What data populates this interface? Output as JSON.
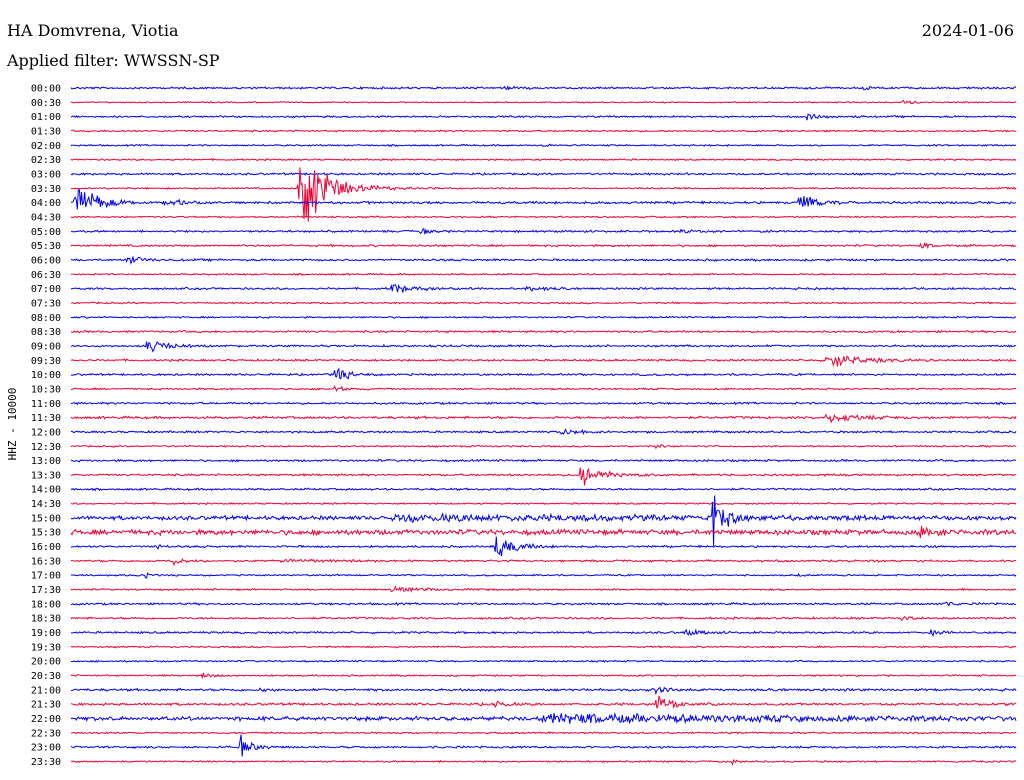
{
  "header": {
    "station": "HA Domvrena, Viotia",
    "filter": "Applied filter: WWSSN-SP",
    "date": "2024-01-06"
  },
  "colors": {
    "even_hour_trace": "#0000ee",
    "half_hour_trace": "#ee0033",
    "background": "#ffffff",
    "text": "#000000"
  },
  "chart_data": {
    "type": "line",
    "subtype": "helicorder",
    "ylabel": "HHZ - 10000",
    "row_labels": [
      "00:00",
      "00:30",
      "01:00",
      "01:30",
      "02:00",
      "02:30",
      "03:00",
      "03:30",
      "04:00",
      "04:30",
      "05:00",
      "05:30",
      "06:00",
      "06:30",
      "07:00",
      "07:30",
      "08:00",
      "08:30",
      "09:00",
      "09:30",
      "10:00",
      "10:30",
      "11:00",
      "11:30",
      "12:00",
      "12:30",
      "13:00",
      "13:30",
      "14:00",
      "14:30",
      "15:00",
      "15:30",
      "16:00",
      "16:30",
      "17:00",
      "17:30",
      "18:00",
      "18:30",
      "19:00",
      "19:30",
      "20:00",
      "20:30",
      "21:00",
      "21:30",
      "22:00",
      "22:30",
      "23:00",
      "23:30"
    ],
    "rows": [
      {
        "time": "00:00",
        "noise": 1.0,
        "events": [
          {
            "t": 0.46,
            "a": 2,
            "d": 0.01
          },
          {
            "t": 0.84,
            "a": 2,
            "d": 0.01
          }
        ]
      },
      {
        "time": "00:30",
        "noise": 0.6,
        "events": [
          {
            "t": 0.88,
            "a": 3,
            "d": 0.01
          }
        ]
      },
      {
        "time": "01:00",
        "noise": 0.9,
        "events": [
          {
            "t": 0.78,
            "a": 5,
            "d": 0.01
          }
        ]
      },
      {
        "time": "01:30",
        "noise": 0.8,
        "events": []
      },
      {
        "time": "02:00",
        "noise": 0.8,
        "events": [
          {
            "t": 0.5,
            "a": 2,
            "d": 0.005
          }
        ]
      },
      {
        "time": "02:30",
        "noise": 0.8,
        "events": []
      },
      {
        "time": "03:00",
        "noise": 1.0,
        "events": []
      },
      {
        "time": "03:30",
        "noise": 0.8,
        "events": [
          {
            "t": 0.24,
            "a": 65,
            "d": 0.025
          }
        ]
      },
      {
        "time": "04:00",
        "noise": 1.2,
        "events": [
          {
            "t": 0.005,
            "a": 22,
            "d": 0.02
          },
          {
            "t": 0.1,
            "a": 3,
            "d": 0.03
          },
          {
            "t": 0.77,
            "a": 10,
            "d": 0.015
          }
        ]
      },
      {
        "time": "04:30",
        "noise": 0.8,
        "events": []
      },
      {
        "time": "05:00",
        "noise": 1.0,
        "events": [
          {
            "t": 0.37,
            "a": 3,
            "d": 0.01
          },
          {
            "t": 0.64,
            "a": 2,
            "d": 0.01
          }
        ]
      },
      {
        "time": "05:30",
        "noise": 1.0,
        "events": [
          {
            "t": 0.9,
            "a": 3,
            "d": 0.01
          }
        ]
      },
      {
        "time": "06:00",
        "noise": 1.0,
        "events": [
          {
            "t": 0.06,
            "a": 5,
            "d": 0.015
          }
        ]
      },
      {
        "time": "06:30",
        "noise": 0.8,
        "events": []
      },
      {
        "time": "07:00",
        "noise": 1.0,
        "events": [
          {
            "t": 0.34,
            "a": 5,
            "d": 0.02
          },
          {
            "t": 0.48,
            "a": 3,
            "d": 0.02
          }
        ]
      },
      {
        "time": "07:30",
        "noise": 0.8,
        "events": []
      },
      {
        "time": "08:00",
        "noise": 0.8,
        "events": []
      },
      {
        "time": "08:30",
        "noise": 1.0,
        "events": []
      },
      {
        "time": "09:00",
        "noise": 1.0,
        "events": [
          {
            "t": 0.08,
            "a": 8,
            "d": 0.02
          }
        ]
      },
      {
        "time": "09:30",
        "noise": 1.0,
        "events": [
          {
            "t": 0.8,
            "a": 9,
            "d": 0.03
          }
        ]
      },
      {
        "time": "10:00",
        "noise": 1.0,
        "events": [
          {
            "t": 0.28,
            "a": 10,
            "d": 0.012
          }
        ]
      },
      {
        "time": "10:30",
        "noise": 0.8,
        "events": [
          {
            "t": 0.28,
            "a": 4,
            "d": 0.01
          }
        ]
      },
      {
        "time": "11:00",
        "noise": 1.0,
        "events": []
      },
      {
        "time": "11:30",
        "noise": 1.2,
        "events": [
          {
            "t": 0.8,
            "a": 5,
            "d": 0.03
          }
        ]
      },
      {
        "time": "12:00",
        "noise": 1.0,
        "events": [
          {
            "t": 0.52,
            "a": 4,
            "d": 0.015
          }
        ]
      },
      {
        "time": "12:30",
        "noise": 0.8,
        "events": [
          {
            "t": 0.62,
            "a": 3,
            "d": 0.005
          }
        ]
      },
      {
        "time": "13:00",
        "noise": 1.0,
        "events": []
      },
      {
        "time": "13:30",
        "noise": 1.0,
        "events": [
          {
            "t": 0.54,
            "a": 13,
            "d": 0.02
          }
        ]
      },
      {
        "time": "14:00",
        "noise": 1.0,
        "events": []
      },
      {
        "time": "14:30",
        "noise": 0.8,
        "events": []
      },
      {
        "time": "15:00",
        "noise": 2.0,
        "events": [
          {
            "t": 0.34,
            "a": 3,
            "d": 0.3
          },
          {
            "t": 0.68,
            "a": 30,
            "d": 0.01
          }
        ]
      },
      {
        "time": "15:30",
        "noise": 2.5,
        "events": [
          {
            "t": 0.9,
            "a": 5,
            "d": 0.015
          }
        ]
      },
      {
        "time": "16:00",
        "noise": 1.0,
        "events": [
          {
            "t": 0.09,
            "a": 4,
            "d": 0.005
          },
          {
            "t": 0.45,
            "a": 14,
            "d": 0.018
          }
        ]
      },
      {
        "time": "16:30",
        "noise": 1.0,
        "events": [
          {
            "t": 0.11,
            "a": 4,
            "d": 0.01
          },
          {
            "t": 0.22,
            "a": 3,
            "d": 0.03
          }
        ]
      },
      {
        "time": "17:00",
        "noise": 0.8,
        "events": [
          {
            "t": 0.08,
            "a": 3,
            "d": 0.005
          },
          {
            "t": 0.77,
            "a": 3,
            "d": 0.005
          }
        ]
      },
      {
        "time": "17:30",
        "noise": 0.8,
        "events": [
          {
            "t": 0.34,
            "a": 3,
            "d": 0.03
          }
        ]
      },
      {
        "time": "18:00",
        "noise": 1.0,
        "events": [
          {
            "t": 0.92,
            "a": 3,
            "d": 0.01
          }
        ]
      },
      {
        "time": "18:30",
        "noise": 1.0,
        "events": [
          {
            "t": 0.88,
            "a": 3,
            "d": 0.01
          }
        ]
      },
      {
        "time": "19:00",
        "noise": 1.0,
        "events": [
          {
            "t": 0.65,
            "a": 4,
            "d": 0.015
          },
          {
            "t": 0.91,
            "a": 3,
            "d": 0.01
          }
        ]
      },
      {
        "time": "19:30",
        "noise": 0.8,
        "events": []
      },
      {
        "time": "20:00",
        "noise": 0.8,
        "events": []
      },
      {
        "time": "20:30",
        "noise": 0.8,
        "events": [
          {
            "t": 0.14,
            "a": 3,
            "d": 0.01
          }
        ]
      },
      {
        "time": "21:00",
        "noise": 1.2,
        "events": [
          {
            "t": 0.2,
            "a": 4,
            "d": 0.005
          },
          {
            "t": 0.62,
            "a": 4,
            "d": 0.01
          }
        ]
      },
      {
        "time": "21:30",
        "noise": 1.2,
        "events": [
          {
            "t": 0.45,
            "a": 5,
            "d": 0.01
          },
          {
            "t": 0.62,
            "a": 9,
            "d": 0.015
          }
        ]
      },
      {
        "time": "22:00",
        "noise": 2.0,
        "events": [
          {
            "t": 0.5,
            "a": 5,
            "d": 0.25
          }
        ]
      },
      {
        "time": "22:30",
        "noise": 0.8,
        "events": []
      },
      {
        "time": "23:00",
        "noise": 1.0,
        "events": [
          {
            "t": 0.18,
            "a": 12,
            "d": 0.01
          }
        ]
      },
      {
        "time": "23:30",
        "noise": 0.8,
        "events": [
          {
            "t": 0.7,
            "a": 3,
            "d": 0.005
          }
        ]
      }
    ],
    "grid": false,
    "legend": "none"
  }
}
